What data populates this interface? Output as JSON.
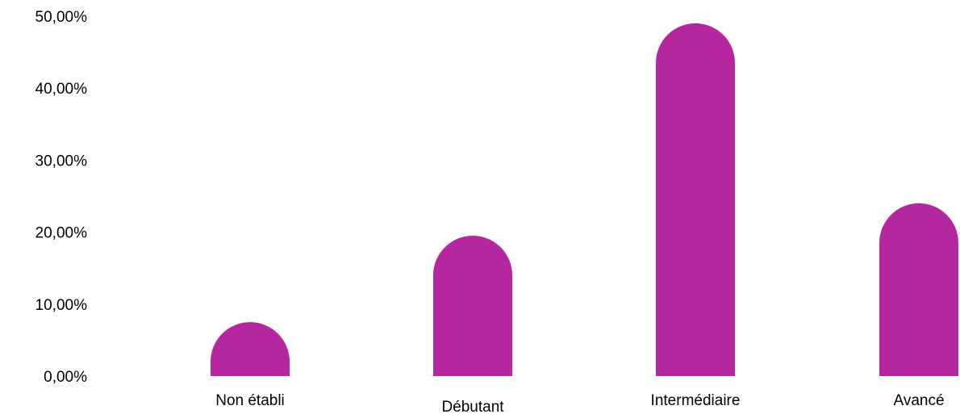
{
  "chart_data": {
    "type": "bar",
    "categories": [
      "Non établi",
      "Débutant",
      "Intermédiaire",
      "Avancé"
    ],
    "values": [
      7.5,
      19.5,
      49.0,
      24.0
    ],
    "ylim": [
      0,
      50
    ],
    "yticks": [
      "0,00%",
      "10,00%",
      "20,00%",
      "30,00%",
      "40,00%",
      "50,00%"
    ],
    "ytick_values": [
      0,
      10,
      20,
      30,
      40,
      50
    ],
    "grid": false,
    "legend": "none",
    "bar_color": "#b5279f",
    "bar_shape": "rounded-top"
  }
}
